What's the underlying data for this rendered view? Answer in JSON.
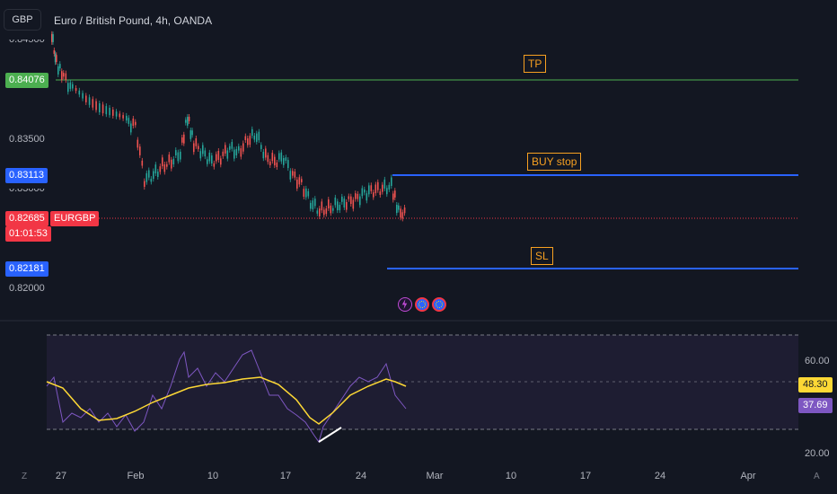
{
  "header": {
    "symbol": "GBP",
    "title": "Euro / British Pound, 4h, OANDA"
  },
  "price_axis": {
    "labels": [
      "0.83500",
      "0.82000"
    ],
    "partial_labels": [
      "0.84500",
      "0.83000"
    ]
  },
  "price_tags": {
    "tp_price": "0.84076",
    "buy_price": "0.83113",
    "current_price": "0.82685",
    "countdown": "01:01:53",
    "symbol_label": "EURGBP",
    "sl_price": "0.82181"
  },
  "annotations": {
    "tp": "TP",
    "buy": "BUY stop",
    "sl": "SL"
  },
  "event_icons": [
    "lightning-icon",
    "eu-flag-icon",
    "eu-flag-icon"
  ],
  "rsi": {
    "axis_labels": [
      "60.00",
      "20.00"
    ],
    "rsi_value": "37.69",
    "ma_value": "48.30"
  },
  "time_axis": {
    "labels": [
      "27",
      "Feb",
      "10",
      "17",
      "24",
      "Mar",
      "10",
      "17",
      "24",
      "Apr"
    ]
  },
  "corner": {
    "left": "Z",
    "right": "A"
  },
  "colors": {
    "background": "#131722",
    "tp_line": "#4caf50",
    "order_line": "#2962ff",
    "current_tag": "#f23645",
    "label_accent": "#f7a021",
    "rsi_line": "#7e57c2",
    "rsi_ma": "#fdd835"
  }
}
